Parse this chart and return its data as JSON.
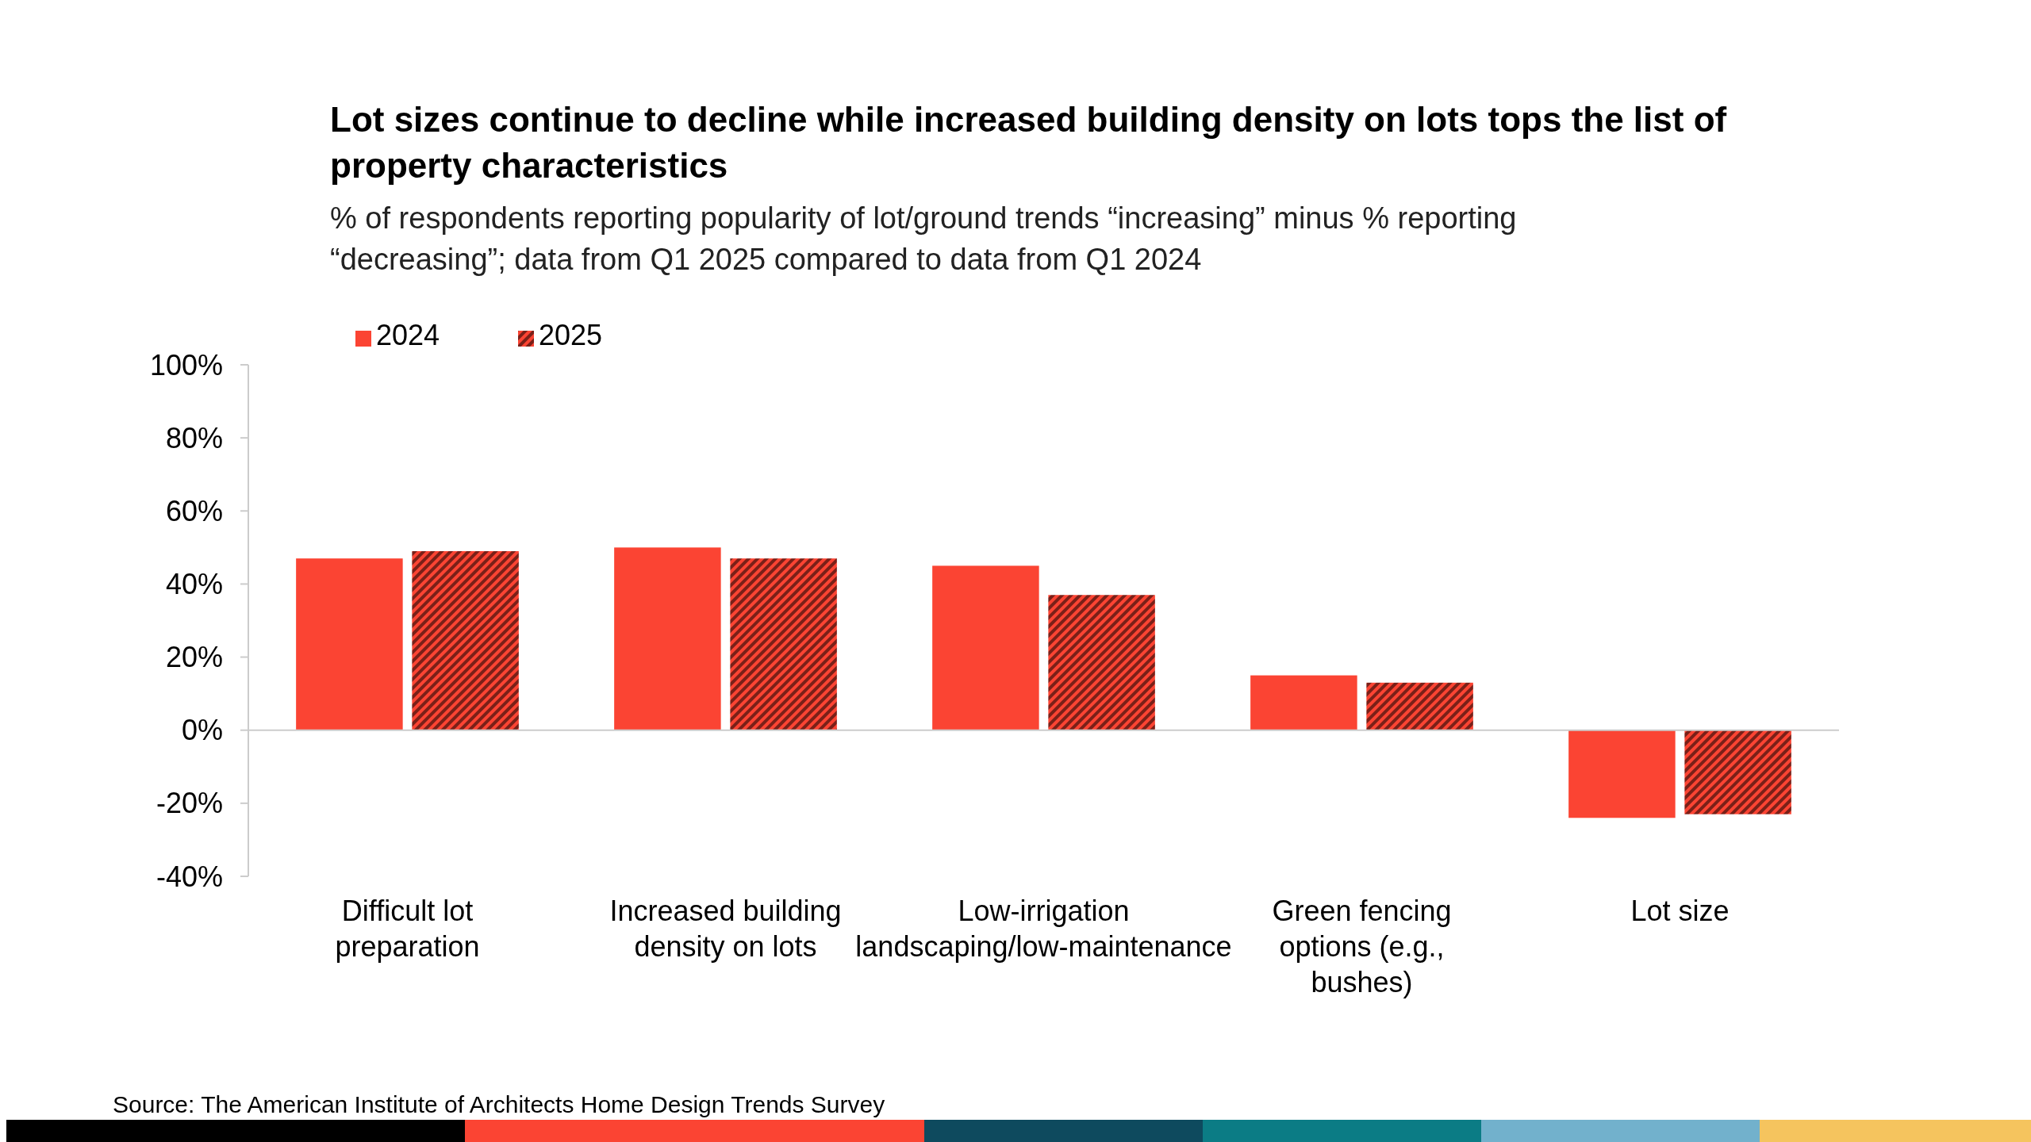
{
  "chart_data": {
    "type": "bar",
    "title": "Lot sizes continue to decline while increased building density on lots tops the list of property characteristics",
    "subtitle": "% of respondents reporting popularity of lot/ground trends “increasing” minus % reporting “decreasing”; data from Q1 2025 compared to data from Q1 2024",
    "categories": [
      "Difficult lot preparation",
      "Increased building density on lots",
      "Low-irrigation landscaping/low-maintenance",
      "Green fencing options (e.g., bushes)",
      "Lot size"
    ],
    "series": [
      {
        "name": "2024",
        "color": "#fb4433",
        "values": [
          47,
          50,
          45,
          15,
          -24
        ]
      },
      {
        "name": "2025",
        "color": "#7a2018",
        "values": [
          49,
          47,
          37,
          13,
          -23
        ]
      }
    ],
    "ylim": [
      -40,
      100
    ],
    "yticks": [
      {
        "value": -40,
        "label": "-40%"
      },
      {
        "value": -20,
        "label": "-20%"
      },
      {
        "value": 0,
        "label": "0%"
      },
      {
        "value": 20,
        "label": "20%"
      },
      {
        "value": 40,
        "label": "40%"
      },
      {
        "value": 60,
        "label": "60%"
      },
      {
        "value": 80,
        "label": "80%"
      },
      {
        "value": 100,
        "label": "100%"
      }
    ],
    "legend": "top left",
    "annotations": [
      "Source: The American Institute of Architects Home Design Trends Survey"
    ]
  }
}
